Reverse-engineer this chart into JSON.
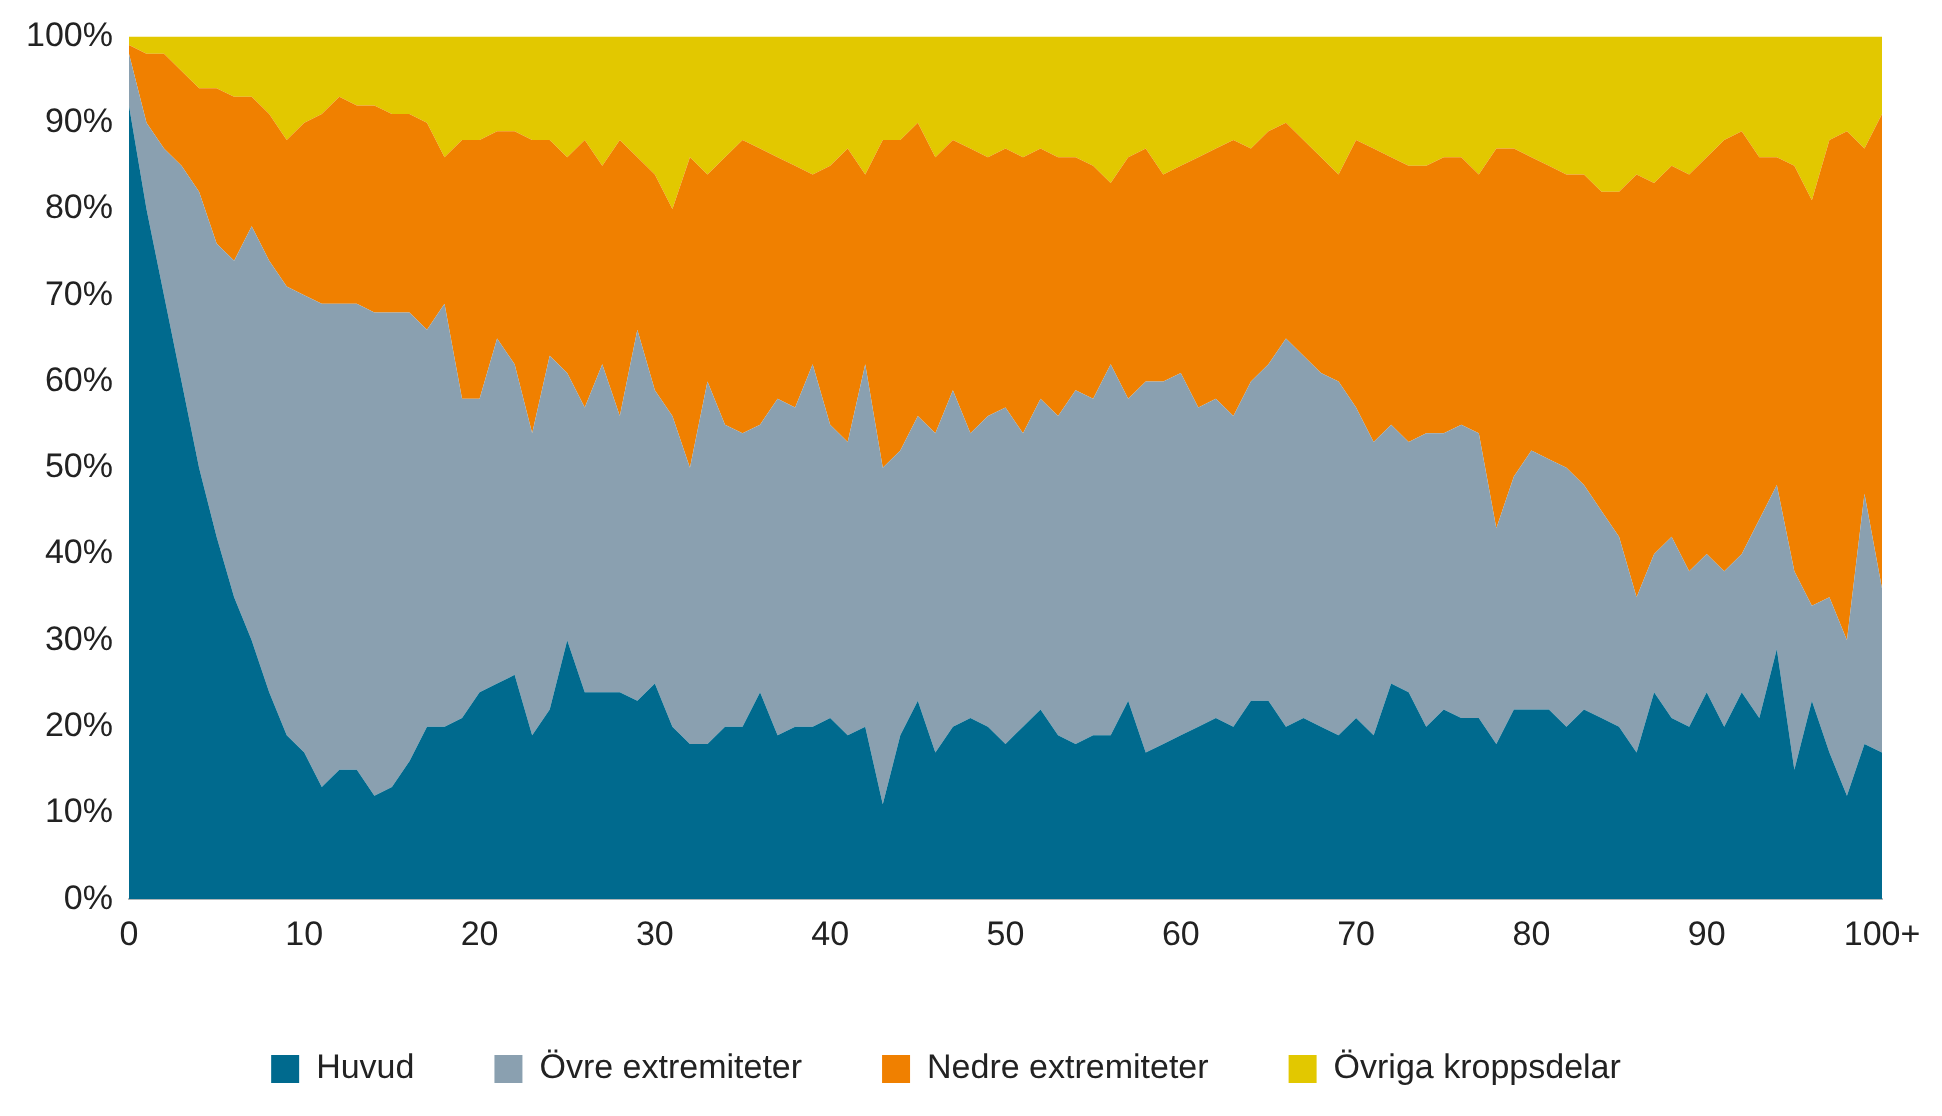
{
  "chart_data": {
    "type": "area",
    "stacked": true,
    "categories": [
      "0",
      null,
      null,
      null,
      null,
      null,
      null,
      null,
      null,
      null,
      "10",
      null,
      null,
      null,
      null,
      null,
      null,
      null,
      null,
      null,
      "20",
      null,
      null,
      null,
      null,
      null,
      null,
      null,
      null,
      null,
      "30",
      null,
      null,
      null,
      null,
      null,
      null,
      null,
      null,
      null,
      "40",
      null,
      null,
      null,
      null,
      null,
      null,
      null,
      null,
      null,
      "50",
      null,
      null,
      null,
      null,
      null,
      null,
      null,
      null,
      null,
      "60",
      null,
      null,
      null,
      null,
      null,
      null,
      null,
      null,
      null,
      "70",
      null,
      null,
      null,
      null,
      null,
      null,
      null,
      null,
      null,
      "80",
      null,
      null,
      null,
      null,
      null,
      null,
      null,
      null,
      null,
      "90",
      null,
      null,
      null,
      null,
      null,
      null,
      null,
      null,
      null,
      "100+"
    ],
    "ylim": [
      0,
      100
    ],
    "yticks": [
      {
        "value": 0,
        "label": "0%"
      },
      {
        "value": 10,
        "label": "10%"
      },
      {
        "value": 20,
        "label": "20%"
      },
      {
        "value": 30,
        "label": "30%"
      },
      {
        "value": 40,
        "label": "40%"
      },
      {
        "value": 50,
        "label": "50%"
      },
      {
        "value": 60,
        "label": "60%"
      },
      {
        "value": 70,
        "label": "70%"
      },
      {
        "value": 80,
        "label": "80%"
      },
      {
        "value": 90,
        "label": "90%"
      },
      {
        "value": 100,
        "label": "100%"
      }
    ],
    "grid": false,
    "legend": "bottom",
    "series": [
      {
        "name": "Huvud",
        "color": "#006a8e",
        "values": [
          92,
          80,
          70,
          60,
          50,
          42,
          35,
          30,
          24,
          19,
          17,
          13,
          15,
          15,
          12,
          13,
          16,
          20,
          20,
          21,
          24,
          25,
          26,
          19,
          22,
          30,
          24,
          24,
          24,
          23,
          25,
          20,
          18,
          18,
          20,
          20,
          24,
          19,
          20,
          20,
          21,
          19,
          20,
          11,
          19,
          23,
          17,
          20,
          21,
          20,
          18,
          20,
          22,
          19,
          18,
          19,
          19,
          23,
          17,
          18,
          19,
          20,
          21,
          20,
          23,
          23,
          20,
          21,
          20,
          19,
          21,
          19,
          25,
          24,
          20,
          22,
          21,
          21,
          18,
          22,
          22,
          22,
          20,
          22,
          21,
          20,
          17,
          24,
          21,
          20,
          24,
          20,
          24,
          21,
          29,
          15,
          23,
          17,
          12,
          18,
          17
        ]
      },
      {
        "name": "Övre extremiteter",
        "color": "#8aa0b0",
        "values": [
          6,
          10,
          17,
          25,
          32,
          34,
          39,
          48,
          50,
          52,
          53,
          56,
          54,
          54,
          56,
          55,
          52,
          46,
          49,
          37,
          34,
          40,
          36,
          35,
          41,
          31,
          33,
          38,
          32,
          43,
          34,
          36,
          32,
          42,
          35,
          34,
          31,
          39,
          37,
          42,
          34,
          34,
          42,
          39,
          33,
          33,
          37,
          39,
          33,
          36,
          39,
          34,
          36,
          37,
          41,
          39,
          43,
          35,
          43,
          42,
          42,
          37,
          37,
          36,
          37,
          39,
          45,
          42,
          41,
          41,
          36,
          34,
          30,
          29,
          34,
          32,
          34,
          33,
          25,
          27,
          30,
          29,
          30,
          26,
          24,
          22,
          18,
          16,
          21,
          18,
          16,
          18,
          16,
          23,
          19,
          23,
          11,
          18,
          18,
          29,
          19
        ]
      },
      {
        "name": "Nedre extremiteter",
        "color": "#f08000",
        "values": [
          1,
          8,
          11,
          11,
          12,
          18,
          19,
          15,
          17,
          17,
          20,
          22,
          24,
          23,
          24,
          23,
          23,
          24,
          17,
          30,
          30,
          24,
          27,
          34,
          25,
          25,
          31,
          23,
          32,
          20,
          25,
          24,
          36,
          24,
          31,
          34,
          32,
          28,
          28,
          22,
          30,
          34,
          22,
          38,
          36,
          34,
          32,
          29,
          33,
          30,
          30,
          32,
          29,
          30,
          27,
          27,
          21,
          28,
          27,
          24,
          24,
          29,
          29,
          32,
          27,
          27,
          25,
          25,
          25,
          24,
          31,
          34,
          31,
          32,
          31,
          32,
          31,
          30,
          44,
          38,
          34,
          34,
          34,
          36,
          37,
          40,
          49,
          43,
          43,
          46,
          46,
          50,
          49,
          42,
          38,
          47,
          47,
          53,
          59,
          40,
          55
        ]
      },
      {
        "name": "Övriga kroppsdelar",
        "color": "#e2c800",
        "values": [
          1,
          2,
          2,
          4,
          6,
          6,
          7,
          7,
          9,
          12,
          10,
          9,
          7,
          8,
          8,
          9,
          9,
          10,
          14,
          12,
          12,
          11,
          11,
          12,
          12,
          14,
          12,
          15,
          12,
          14,
          16,
          20,
          14,
          16,
          14,
          12,
          13,
          14,
          15,
          16,
          15,
          13,
          16,
          12,
          12,
          10,
          14,
          12,
          13,
          14,
          13,
          14,
          13,
          14,
          14,
          15,
          17,
          14,
          13,
          16,
          15,
          14,
          13,
          12,
          13,
          11,
          10,
          12,
          14,
          16,
          12,
          13,
          14,
          15,
          15,
          14,
          14,
          16,
          13,
          13,
          14,
          15,
          16,
          16,
          18,
          18,
          16,
          17,
          15,
          16,
          14,
          12,
          11,
          14,
          14,
          15,
          19,
          12,
          11,
          13,
          9
        ]
      }
    ]
  }
}
